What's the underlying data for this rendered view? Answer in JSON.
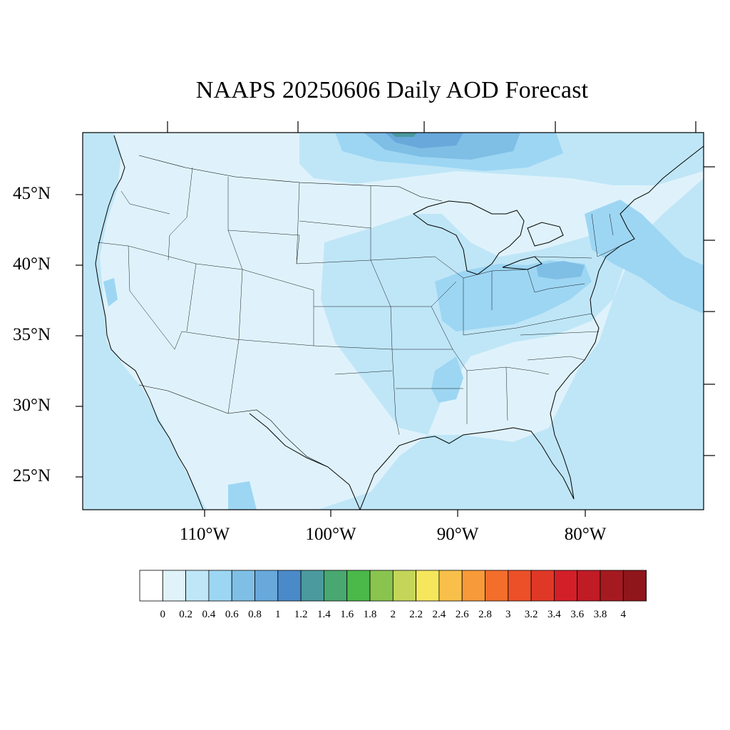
{
  "title": "NAAPS 20250606 Daily AOD Forecast",
  "map": {
    "region": "Continental United States",
    "lat_ticks": [
      "45°N",
      "40°N",
      "35°N",
      "30°N",
      "25°N"
    ],
    "lon_ticks": [
      "110°W",
      "100°W",
      "90°W",
      "80°W"
    ],
    "ocean_color": "#bfe6f7",
    "land_base_color": "#dff2fb"
  },
  "colorbar": {
    "labels": [
      "0",
      "0.2",
      "0.4",
      "0.6",
      "0.8",
      "1",
      "1.2",
      "1.4",
      "1.6",
      "1.8",
      "2",
      "2.2",
      "2.4",
      "2.6",
      "2.8",
      "3",
      "3.2",
      "3.4",
      "3.6",
      "3.8",
      "4"
    ],
    "colors": [
      "#ffffff",
      "#e0f3fb",
      "#bfe6f7",
      "#9dd6f3",
      "#7fbfe6",
      "#68a8db",
      "#4a8ac8",
      "#4a9a9e",
      "#48a870",
      "#4bb84a",
      "#88c44e",
      "#c4d659",
      "#f5e65b",
      "#f8c04a",
      "#f79a3a",
      "#f36e2b",
      "#ec5028",
      "#e03827",
      "#d31f28",
      "#bf1c25",
      "#a51a20",
      "#8f161b"
    ]
  }
}
